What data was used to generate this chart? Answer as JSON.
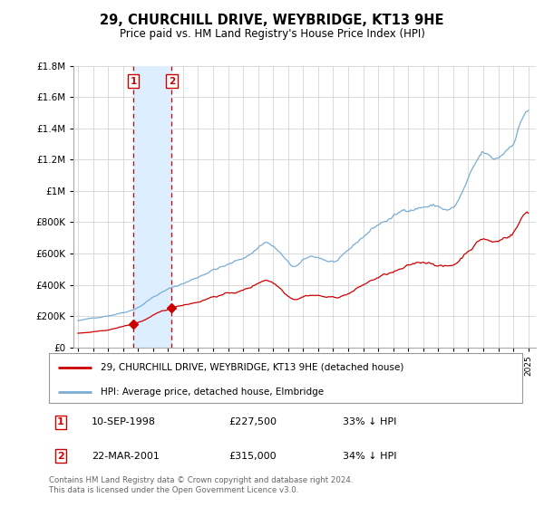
{
  "title": "29, CHURCHILL DRIVE, WEYBRIDGE, KT13 9HE",
  "subtitle": "Price paid vs. HM Land Registry's House Price Index (HPI)",
  "ylim": [
    0,
    1800000
  ],
  "yticks": [
    0,
    200000,
    400000,
    600000,
    800000,
    1000000,
    1200000,
    1400000,
    1600000,
    1800000
  ],
  "xlim_start": 1994.7,
  "xlim_end": 2025.5,
  "line_color_red": "#cc0000",
  "line_color_blue": "#7aadd4",
  "transaction_color": "#cc0000",
  "shaded_color": "#ddeeff",
  "transactions": [
    {
      "num": 1,
      "date": "10-SEP-1998",
      "price": 227500,
      "label": "33% ↓ HPI",
      "year": 1998.7
    },
    {
      "num": 2,
      "date": "22-MAR-2001",
      "price": 315000,
      "label": "34% ↓ HPI",
      "year": 2001.25
    }
  ],
  "legend_house": "29, CHURCHILL DRIVE, WEYBRIDGE, KT13 9HE (detached house)",
  "legend_hpi": "HPI: Average price, detached house, Elmbridge",
  "footnote": "Contains HM Land Registry data © Crown copyright and database right 2024.\nThis data is licensed under the Open Government Licence v3.0."
}
